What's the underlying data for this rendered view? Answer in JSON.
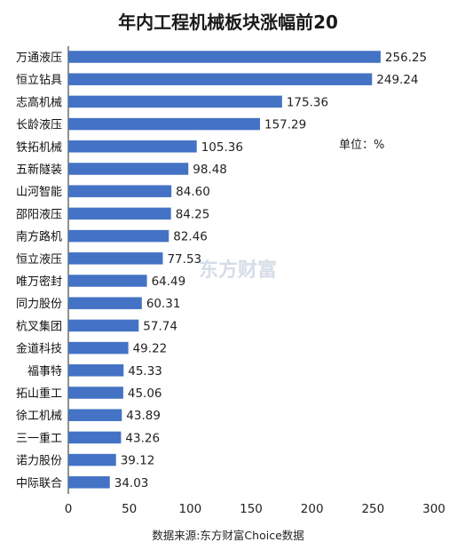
{
  "chart_data": {
    "type": "bar",
    "orientation": "horizontal",
    "title": "年内工程机械板块涨幅前20",
    "unit_label": "单位：%",
    "source": "数据来源:东方财富Choice数据",
    "watermark": "东方财富",
    "categories": [
      "万通液压",
      "恒立钻具",
      "志高机械",
      "长龄液压",
      "铁拓机械",
      "五新隧装",
      "山河智能",
      "邵阳液压",
      "南方路机",
      "恒立液压",
      "唯万密封",
      "同力股份",
      "杭叉集团",
      "金道科技",
      "福事特",
      "拓山重工",
      "徐工机械",
      "三一重工",
      "诺力股份",
      "中际联合"
    ],
    "values": [
      256.25,
      249.24,
      175.36,
      157.29,
      105.36,
      98.48,
      84.6,
      84.25,
      82.46,
      77.53,
      64.49,
      60.31,
      57.74,
      49.22,
      45.33,
      45.06,
      43.89,
      43.26,
      39.12,
      34.03
    ],
    "value_labels": [
      "256.25",
      "249.24",
      "175.36",
      "157.29",
      "105.36",
      "98.48",
      "84.60",
      "84.25",
      "82.46",
      "77.53",
      "64.49",
      "60.31",
      "57.74",
      "49.22",
      "45.33",
      "45.06",
      "43.89",
      "43.26",
      "39.12",
      "34.03"
    ],
    "xlim": [
      0,
      300
    ],
    "xticks": [
      "0",
      "50",
      "100",
      "150",
      "200",
      "250",
      "300"
    ],
    "grid": false,
    "bar_color": "#4472c4"
  }
}
